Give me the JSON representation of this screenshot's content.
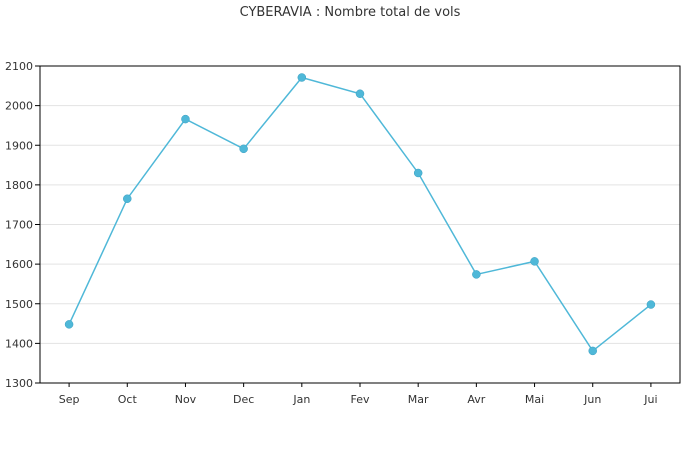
{
  "chart_data": {
    "type": "line",
    "title": "CYBERAVIA : Nombre total de vols",
    "xlabel": "",
    "ylabel": "",
    "categories": [
      "Sep",
      "Oct",
      "Nov",
      "Dec",
      "Jan",
      "Fev",
      "Mar",
      "Avr",
      "Mai",
      "Jun",
      "Jui"
    ],
    "series": [
      {
        "values": [
          1448,
          1765,
          1966,
          1891,
          2071,
          2030,
          1830,
          1574,
          1607,
          1381,
          1498
        ],
        "color": "#4fb8d8"
      }
    ],
    "ylim": [
      1300,
      2100
    ],
    "yticks": [
      1300,
      1400,
      1500,
      1600,
      1700,
      1800,
      1900,
      2000,
      2100
    ],
    "grid": true,
    "legend": "none"
  }
}
